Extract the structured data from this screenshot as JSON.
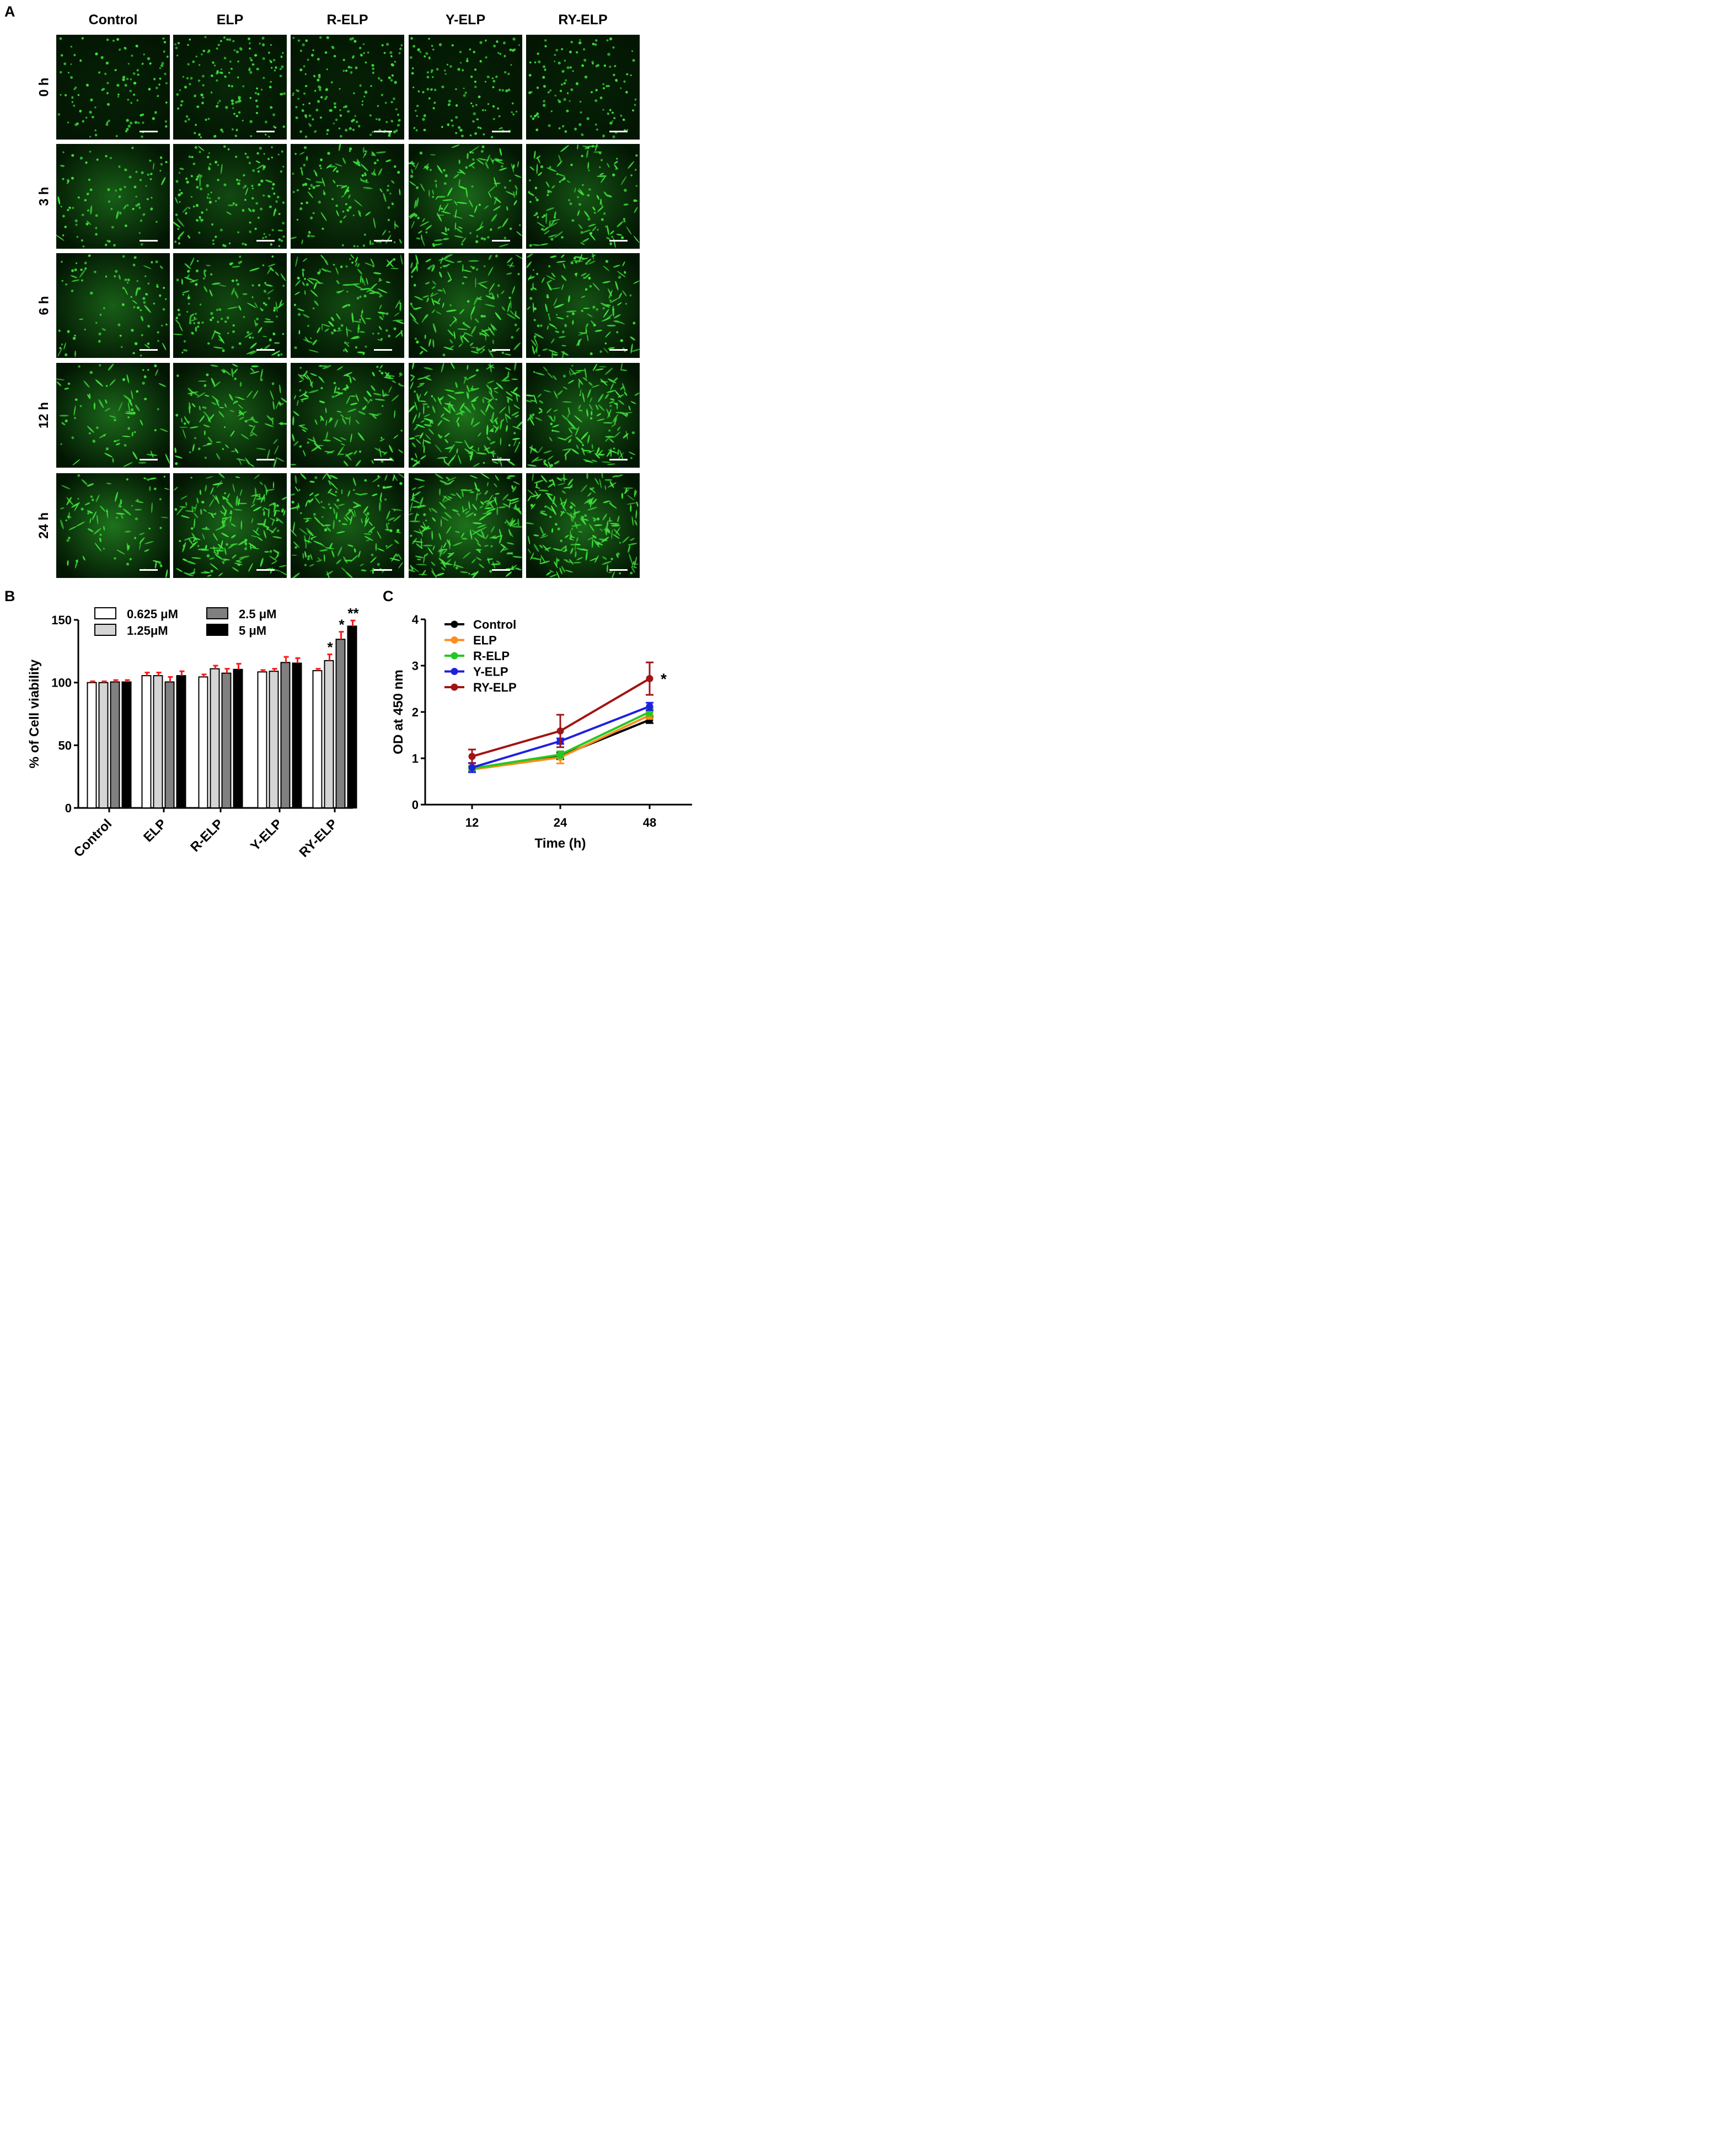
{
  "figure": {
    "panel_a": {
      "letter": "A",
      "columns": [
        "Control",
        "ELP",
        "R-ELP",
        "Y-ELP",
        "RY-ELP"
      ],
      "rows": [
        "0 h",
        "3 h",
        "6 h",
        "12 h",
        "24 h"
      ]
    },
    "panel_b": {
      "letter": "B"
    },
    "panel_c": {
      "letter": "C"
    }
  },
  "colors": {
    "fluorescence": "#3fe33c",
    "error_bar_b": "#ff1a1a",
    "control": "#000000",
    "elp": "#ff8c1a",
    "r_elp": "#22c922",
    "y_elp": "#1f1fe0",
    "ry_elp": "#a31313"
  },
  "chart_data": [
    {
      "type": "bar",
      "panel": "B",
      "ylabel": "% of Cell viability",
      "xlabel": "",
      "ylim": [
        0,
        150
      ],
      "yticks": [
        0,
        50,
        100,
        150
      ],
      "categories": [
        "Control",
        "ELP",
        "R-ELP",
        "Y-ELP",
        "RY-ELP"
      ],
      "legend_position": "top",
      "series": [
        {
          "name": "0.625 μM",
          "fill": "#ffffff",
          "values": [
            100,
            105.5,
            104.5,
            108.5,
            109.5
          ],
          "errors": [
            1,
            2.5,
            2,
            1.5,
            1.5
          ]
        },
        {
          "name": "1.25μM",
          "fill": "#d4d4d4",
          "values": [
            100,
            105.5,
            111,
            109,
            117.5
          ],
          "errors": [
            1,
            2.5,
            2.5,
            2,
            5
          ]
        },
        {
          "name": "2.5 μM",
          "fill": "#808080",
          "values": [
            100.5,
            100.5,
            107.5,
            116,
            134.5
          ],
          "errors": [
            1.5,
            4,
            3.5,
            4.5,
            6
          ]
        },
        {
          "name": "5 μM",
          "fill": "#000000",
          "values": [
            100.5,
            105.5,
            110.5,
            115.5,
            145
          ],
          "errors": [
            1.5,
            3.5,
            4.5,
            4,
            4.5
          ]
        }
      ],
      "annotations": [
        {
          "category": "RY-ELP",
          "series": "1.25μM",
          "text": "*"
        },
        {
          "category": "RY-ELP",
          "series": "2.5 μM",
          "text": "*"
        },
        {
          "category": "RY-ELP",
          "series": "5 μM",
          "text": "**"
        }
      ]
    },
    {
      "type": "line",
      "panel": "C",
      "xlabel": "Time (h)",
      "ylabel": "OD at 450 nm",
      "x": [
        12,
        24,
        48
      ],
      "xticks": [
        12,
        24,
        48
      ],
      "ylim": [
        0,
        4
      ],
      "yticks": [
        0,
        1,
        2,
        3,
        4
      ],
      "legend_position": "top-left",
      "series": [
        {
          "name": "Control",
          "color": "#000000",
          "values": [
            0.78,
            1.05,
            1.83
          ],
          "errors": [
            0.05,
            0.07,
            0.07
          ]
        },
        {
          "name": "ELP",
          "color": "#ff8c1a",
          "values": [
            0.76,
            1.02,
            1.93
          ],
          "errors": [
            0.05,
            0.13,
            0.08
          ]
        },
        {
          "name": "R-ELP",
          "color": "#22c922",
          "values": [
            0.78,
            1.08,
            2.0
          ],
          "errors": [
            0.05,
            0.07,
            0.08
          ]
        },
        {
          "name": "Y-ELP",
          "color": "#1f1fe0",
          "values": [
            0.8,
            1.37,
            2.12
          ],
          "errors": [
            0.1,
            0.06,
            0.08
          ]
        },
        {
          "name": "RY-ELP",
          "color": "#a31313",
          "values": [
            1.04,
            1.59,
            2.72
          ],
          "errors": [
            0.15,
            0.35,
            0.35
          ]
        }
      ],
      "annotations": [
        {
          "x": 48,
          "series": "RY-ELP",
          "text": "*"
        }
      ]
    }
  ]
}
